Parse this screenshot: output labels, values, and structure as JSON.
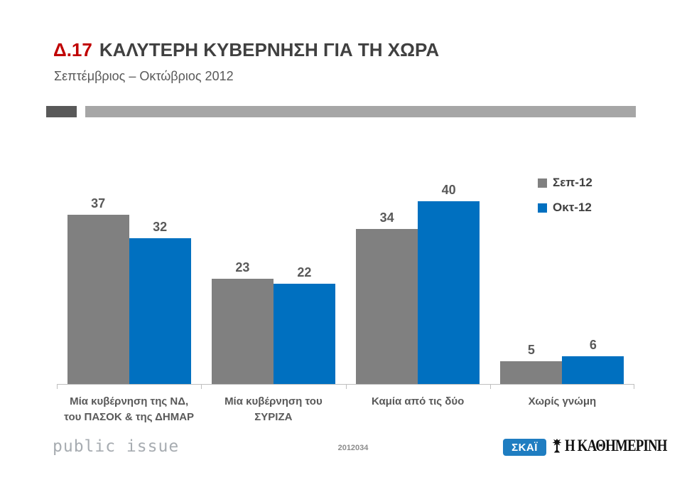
{
  "header": {
    "code": "Δ.17",
    "title": "ΚΑΛΥΤΕΡΗ ΚΥΒΕΡΝΗΣΗ ΓΙΑ ΤΗ ΧΩΡΑ",
    "subtitle": "Σεπτέμβριος – Οκτώβριος 2012",
    "code_color": "#C00000",
    "title_color": "#404040"
  },
  "divider": {
    "dark_color": "#595959",
    "light_color": "#A6A6A6"
  },
  "chart_data": {
    "type": "bar",
    "title": "ΚΑΛΥΤΕΡΗ ΚΥΒΕΡΝΗΣΗ ΓΙΑ ΤΗ ΧΩΡΑ",
    "categories": [
      "Μία κυβέρνηση της ΝΔ,\nτου ΠΑΣΟΚ & της ΔΗΜΑΡ",
      "Μία κυβέρνηση του\nΣΥΡΙΖΑ",
      "Καμία από τις δύο",
      "Χωρίς γνώμη"
    ],
    "series": [
      {
        "name": "Σεπ-12",
        "color": "#808080",
        "values": [
          37,
          23,
          34,
          5
        ]
      },
      {
        "name": "Οκτ-12",
        "color": "#0070C0",
        "values": [
          32,
          22,
          40,
          6
        ]
      }
    ],
    "ylim": [
      0,
      45
    ],
    "grid": false,
    "data_labels": true,
    "legend_position": "top-right",
    "axis_color": "#BFBFBF",
    "value_label_color": "#595959"
  },
  "footer": {
    "brand": "public issue",
    "survey_code": "2012034",
    "skai_label": "ΣΚΑΪ",
    "skai_bg": "#1F7DC1",
    "kathimerini_label": "Η ΚΑΘΗΜΕΡΙΝΗ"
  }
}
